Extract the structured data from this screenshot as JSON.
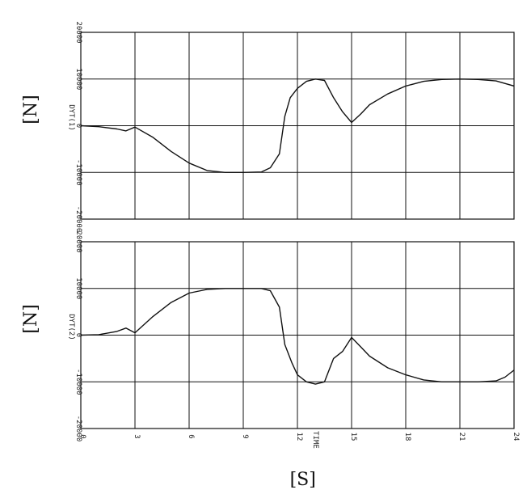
{
  "chart_data": [
    {
      "type": "line",
      "ylabel": "[N]",
      "yaxis_name": "DYT(1)",
      "ylim": [
        -20000,
        20000
      ],
      "xlim": [
        0,
        24
      ],
      "yticks": [
        "20000",
        "10000",
        "0",
        "-10000",
        "-20000"
      ],
      "grid": true,
      "series": [
        {
          "x": [
            0,
            1,
            2,
            2.5,
            3,
            4,
            5,
            6,
            7,
            8,
            9,
            10,
            10.5,
            11,
            11.3,
            11.6,
            12,
            12.5,
            13,
            13.5,
            14,
            14.5,
            15,
            15.5,
            16,
            17,
            18,
            19,
            20,
            21,
            22,
            23,
            24
          ],
          "y": [
            0,
            -200,
            -700,
            -1100,
            -300,
            -2500,
            -5500,
            -8000,
            -9600,
            -10000,
            -10000,
            -9900,
            -9000,
            -6000,
            2000,
            6000,
            8000,
            9500,
            10000,
            9700,
            6000,
            3000,
            700,
            2500,
            4500,
            6800,
            8500,
            9500,
            9900,
            10000,
            9900,
            9600,
            8500
          ]
        }
      ]
    },
    {
      "type": "line",
      "ylabel": "[N]",
      "yaxis_name": "DYT(2)",
      "xlabel": "[S]",
      "xaxis_name": "TIME",
      "ylim": [
        -20000,
        20000
      ],
      "xlim": [
        0,
        24
      ],
      "xticks": [
        "0",
        "3",
        "6",
        "9",
        "12",
        "15",
        "18",
        "21",
        "24"
      ],
      "yticks": [
        "20000",
        "10000",
        "0",
        "-10000",
        "-20000"
      ],
      "grid": true,
      "series": [
        {
          "x": [
            0,
            1,
            2,
            2.5,
            3,
            4,
            5,
            6,
            7,
            8,
            9,
            10,
            10.5,
            11,
            11.3,
            11.7,
            12,
            12.5,
            13,
            13.5,
            14,
            14.5,
            15,
            15.5,
            16,
            17,
            18,
            19,
            20,
            21,
            22,
            23,
            23.5,
            24
          ],
          "y": [
            0,
            100,
            800,
            1500,
            500,
            4000,
            7000,
            9000,
            9800,
            10000,
            10000,
            10000,
            9500,
            6000,
            -2000,
            -6000,
            -8500,
            -10000,
            -10500,
            -10000,
            -5000,
            -3500,
            -500,
            -2500,
            -4500,
            -7000,
            -8500,
            -9600,
            -10000,
            -10000,
            -10000,
            -9800,
            -9000,
            -7500
          ]
        }
      ]
    }
  ]
}
